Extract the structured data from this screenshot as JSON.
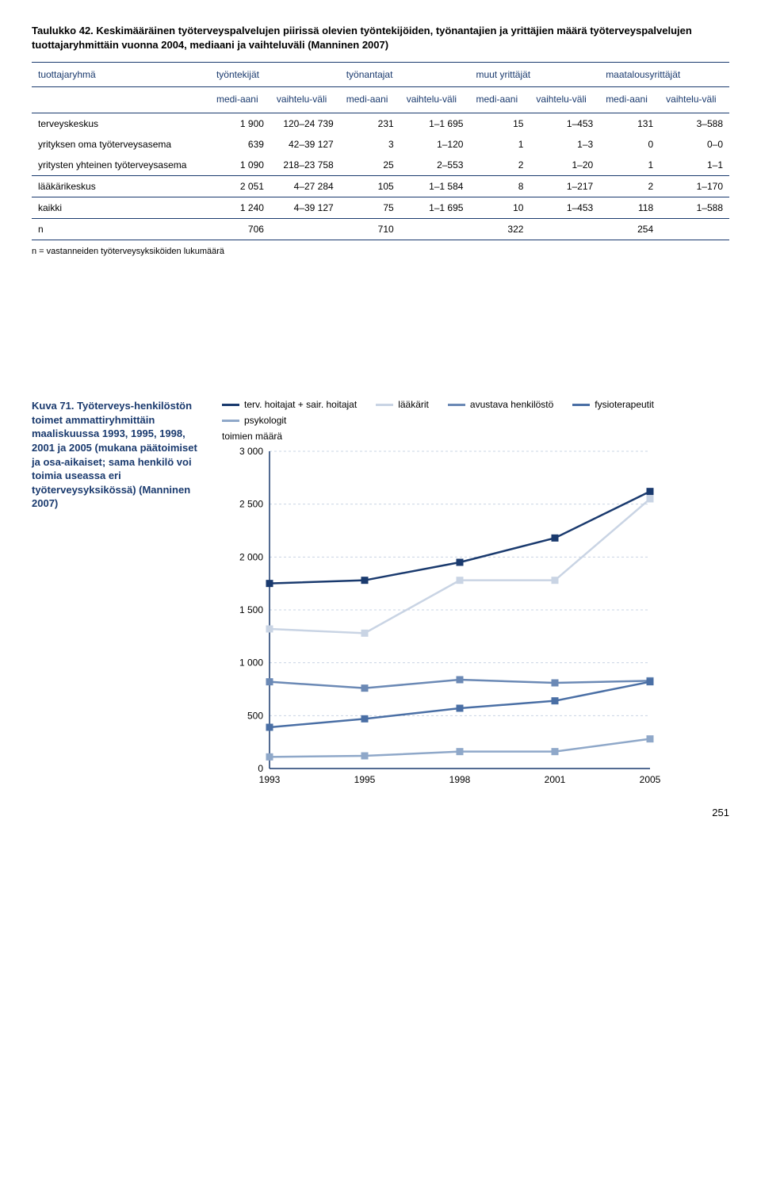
{
  "table": {
    "title": "Taulukko 42. Keskimääräinen työterveyspalvelujen piirissä olevien työntekijöiden, työnantajien ja yrittäjien määrä työterveyspalvelujen tuottajaryhmittäin vuonna 2004, mediaani ja vaihteluväli (Manninen 2007)",
    "col_group_labels": [
      "tuottajaryhmä",
      "työntekijät",
      "työnantajat",
      "muut yrittäjät",
      "maatalousyrittäjät"
    ],
    "sub_labels": {
      "median": "medi-aani",
      "range": "vaihtelu-väli"
    },
    "rows": [
      {
        "label": "terveyskeskus",
        "cells": [
          "1 900",
          "120–24 739",
          "231",
          "1–1 695",
          "15",
          "1–453",
          "131",
          "3–588"
        ]
      },
      {
        "label": "yrityksen oma työterveysasema",
        "cells": [
          "639",
          "42–39 127",
          "3",
          "1–120",
          "1",
          "1–3",
          "0",
          "0–0"
        ]
      },
      {
        "label": "yritysten yhteinen työterveysasema",
        "cells": [
          "1 090",
          "218–23 758",
          "25",
          "2–553",
          "2",
          "1–20",
          "1",
          "1–1"
        ]
      },
      {
        "label": "lääkärikeskus",
        "cells": [
          "2 051",
          "4–27 284",
          "105",
          "1–1 584",
          "8",
          "1–217",
          "2",
          "1–170"
        ]
      },
      {
        "label": "kaikki",
        "cells": [
          "1 240",
          "4–39 127",
          "75",
          "1–1 695",
          "10",
          "1–453",
          "118",
          "1–588"
        ]
      },
      {
        "label": "n",
        "cells": [
          "706",
          "",
          "710",
          "",
          "322",
          "",
          "254",
          ""
        ]
      }
    ],
    "footnote": "n = vastanneiden työterveysyksiköiden lukumäärä"
  },
  "figure": {
    "caption": "Kuva 71. Työterveys-henkilöstön toimet ammattiryhmittäin maaliskuussa 1993, 1995, 1998, 2001 ja 2005 (mukana päätoimiset ja osa-aikaiset; sama henkilö voi toimia useassa eri työterveysyksikössä) (Manninen 2007)",
    "y_axis_title": "toimien määrä",
    "legend": [
      {
        "label": "terv. hoitajat + sair. hoitajat",
        "color": "#1a3a6e"
      },
      {
        "label": "lääkärit",
        "color": "#c9d4e4"
      },
      {
        "label": "avustava henkilöstö",
        "color": "#6b89b5"
      },
      {
        "label": "fysioterapeutit",
        "color": "#4a6fa5"
      },
      {
        "label": "psykologit",
        "color": "#8fa8c9"
      }
    ],
    "chart": {
      "type": "line",
      "x_labels": [
        "1993",
        "1995",
        "1998",
        "2001",
        "2005"
      ],
      "y_min": 0,
      "y_max": 3000,
      "y_step": 500,
      "y_ticks": [
        "0",
        "500",
        "1 000",
        "1 500",
        "2 000",
        "2 500",
        "3 000"
      ],
      "grid_color": "#c9d4e4",
      "axis_color": "#1a3a6e",
      "background": "#ffffff",
      "marker_size": 9,
      "line_width": 2.5,
      "series": [
        {
          "color": "#1a3a6e",
          "values": [
            1750,
            1780,
            1950,
            2180,
            2620
          ]
        },
        {
          "color": "#c9d4e4",
          "values": [
            1320,
            1280,
            1780,
            1780,
            2550
          ]
        },
        {
          "color": "#6b89b5",
          "values": [
            820,
            760,
            840,
            810,
            830
          ]
        },
        {
          "color": "#4a6fa5",
          "values": [
            390,
            470,
            570,
            640,
            820
          ]
        },
        {
          "color": "#8fa8c9",
          "values": [
            110,
            120,
            160,
            160,
            280
          ]
        }
      ]
    }
  },
  "page_number": "251"
}
